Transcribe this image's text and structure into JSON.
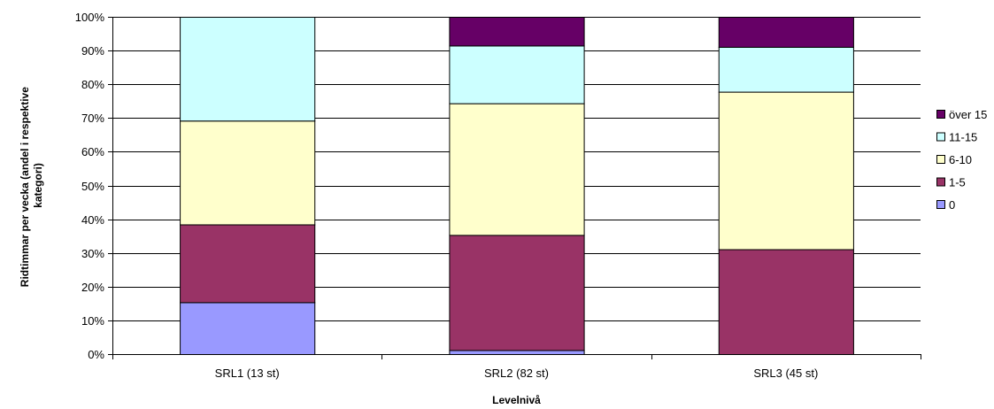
{
  "chart_data": {
    "type": "bar",
    "stacked": true,
    "percent_stacked": true,
    "title": "",
    "xlabel": "Levelnivå",
    "ylabel_lines": [
      "Ridtimmar per vecka (andel i respektive",
      "kategori)"
    ],
    "ylim": [
      0,
      100
    ],
    "yticks": [
      "0%",
      "10%",
      "20%",
      "30%",
      "40%",
      "50%",
      "60%",
      "70%",
      "80%",
      "90%",
      "100%"
    ],
    "grid": true,
    "legend_position": "right",
    "categories": [
      "SRL1 (13 st)",
      "SRL2 (82 st)",
      "SRL3 (45 st)"
    ],
    "series": [
      {
        "name": "0",
        "color": "#9999FF",
        "values": [
          15.4,
          1.2,
          0.0
        ]
      },
      {
        "name": "1-5",
        "color": "#993366",
        "values": [
          23.1,
          34.1,
          31.1
        ]
      },
      {
        "name": "6-10",
        "color": "#FFFFCC",
        "values": [
          30.8,
          39.0,
          46.7
        ]
      },
      {
        "name": "11-15",
        "color": "#CCFFFF",
        "values": [
          30.8,
          17.1,
          13.3
        ]
      },
      {
        "name": "över 15",
        "color": "#660066",
        "values": [
          0.0,
          8.5,
          8.9
        ]
      }
    ]
  }
}
